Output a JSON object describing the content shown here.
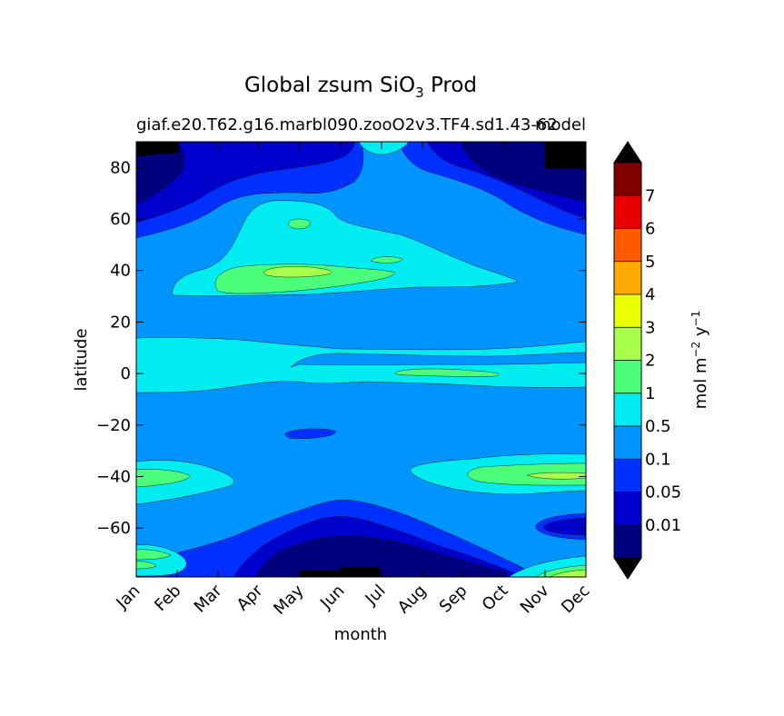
{
  "chart_data": {
    "type": "heatmap",
    "title": "Global zsum SiO",
    "title_subscript": "3",
    "title_suffix": "Prod",
    "subtitle_left": "giaf.e20.T62.g16.marbl090.zooO2v3.TF4.sd1.43-62",
    "subtitle_right": "model",
    "xlabel": "month",
    "ylabel": "latitude",
    "x_categories": [
      "Jan",
      "Feb",
      "Mar",
      "Apr",
      "May",
      "Jun",
      "Jul",
      "Aug",
      "Sep",
      "Oct",
      "Nov",
      "Dec"
    ],
    "xlim": [
      0.5,
      11.5
    ],
    "ylim": [
      -79,
      90
    ],
    "yticks": [
      -60,
      -40,
      -20,
      0,
      20,
      40,
      60,
      80
    ],
    "colorbar": {
      "label_base": "mol m",
      "label_exp1": "−2",
      "label_mid": " y",
      "label_exp2": "−1",
      "levels": [
        0.01,
        0.05,
        0.1,
        0.5,
        1,
        2,
        3,
        4,
        5,
        6,
        7
      ],
      "tick_labels": [
        "0.01",
        "0.05",
        "0.1",
        "0.5",
        "1",
        "2",
        "3",
        "4",
        "5",
        "6",
        "7"
      ],
      "colors": [
        "#00007f",
        "#0000cd",
        "#0030ff",
        "#0094ff",
        "#00ecf0",
        "#4cff7b",
        "#a7ff4c",
        "#ecff00",
        "#ffaa00",
        "#ff5a00",
        "#e80000",
        "#800000"
      ],
      "under_color": "#000000",
      "over_color": "#000000",
      "extend": "both"
    }
  }
}
